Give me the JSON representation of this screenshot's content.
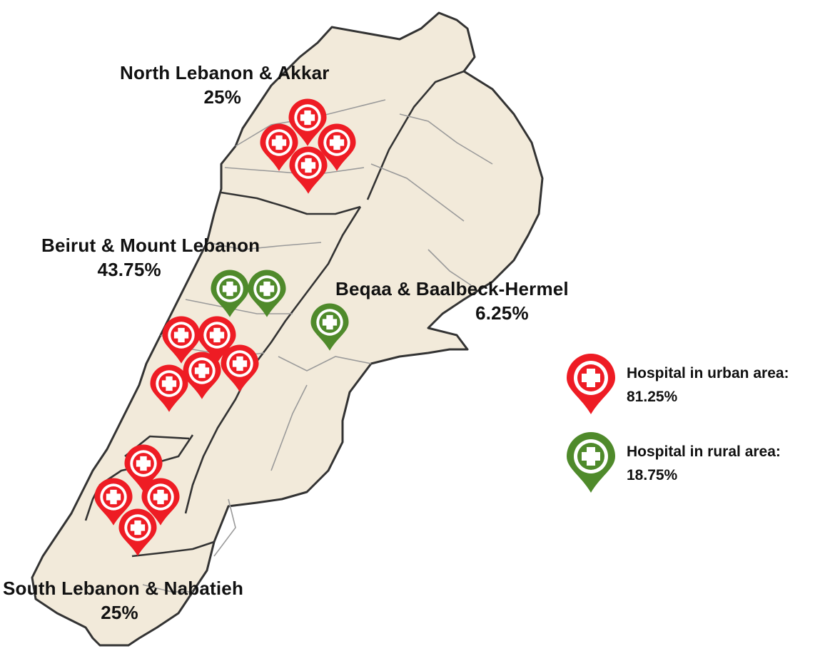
{
  "map": {
    "regions": [
      {
        "id": "north",
        "name": "North Lebanon & Akkar",
        "percent": "25%"
      },
      {
        "id": "beirut",
        "name": "Beirut & Mount Lebanon",
        "percent": "43.75%"
      },
      {
        "id": "beqaa",
        "name": "Beqaa & Baalbeck-Hermel",
        "percent": "6.25%"
      },
      {
        "id": "south",
        "name": "South Lebanon & Nabatieh",
        "percent": "25%"
      }
    ],
    "markers": {
      "urban": {
        "count": 13,
        "color": "#ee1c24",
        "icon": "hospital-cross-pin-icon"
      },
      "rural": {
        "count": 3,
        "color": "#4f8a2b",
        "icon": "hospital-cross-pin-icon"
      }
    }
  },
  "legend": {
    "urban": {
      "label": "Hospital in urban area:",
      "percent": "81.25%"
    },
    "rural": {
      "label": "Hospital in rural area:",
      "percent": "18.75%"
    }
  },
  "colors": {
    "land": "#f2eada",
    "border": "#333333",
    "inner_border": "#aaaaaa"
  }
}
